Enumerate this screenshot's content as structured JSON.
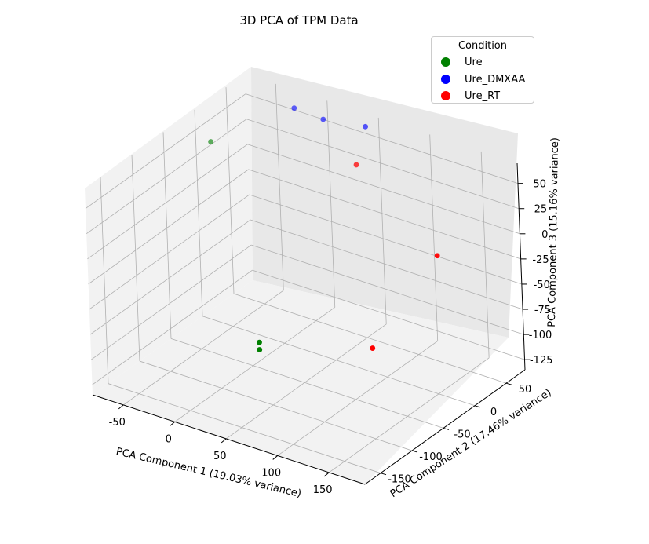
{
  "chart_data": {
    "type": "scatter",
    "title": "3D PCA of TPM Data",
    "xlabel": "PCA Component 1 (19.03% variance)",
    "ylabel": "PCA Component 2 (17.46% variance)",
    "zlabel": "PCA Component 3 (15.16% variance)",
    "xticks": [
      -50,
      0,
      50,
      100,
      150
    ],
    "yticks": [
      -150,
      -100,
      -50,
      0,
      50
    ],
    "zticks": [
      50,
      25,
      0,
      -25,
      -50,
      -75,
      -100,
      -125
    ],
    "xlim": [
      -80,
      185
    ],
    "ylim": [
      -175,
      80
    ],
    "zlim": [
      -135,
      70
    ],
    "legend": {
      "title": "Condition",
      "position": "top-right"
    },
    "series": [
      {
        "name": "Ure",
        "color": "#008000",
        "points": [
          {
            "x": -78,
            "y": 20,
            "z": 30
          },
          {
            "x": 45,
            "y": -110,
            "z": -70
          },
          {
            "x": 50,
            "y": -118,
            "z": -72
          }
        ]
      },
      {
        "name": "Ure_DMXAA",
        "color": "#0000ff",
        "points": [
          {
            "x": -20,
            "y": 60,
            "z": 65
          },
          {
            "x": 5,
            "y": 65,
            "z": 60
          },
          {
            "x": 40,
            "y": 75,
            "z": 60
          }
        ]
      },
      {
        "name": "Ure_RT",
        "color": "#ff0000",
        "points": [
          {
            "x": 55,
            "y": 35,
            "z": 45
          },
          {
            "x": 160,
            "y": -10,
            "z": 10
          },
          {
            "x": 150,
            "y": -100,
            "z": -45
          }
        ]
      }
    ]
  }
}
